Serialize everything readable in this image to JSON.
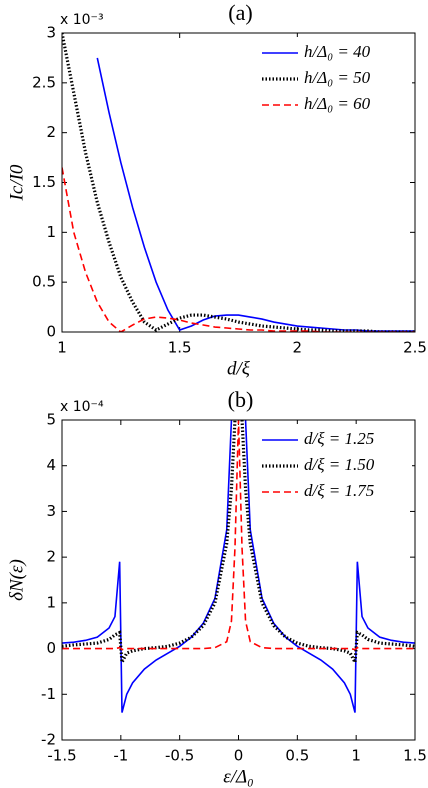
{
  "chart_data": [
    {
      "type": "line",
      "title": "(a)",
      "x_label": "d/ξ",
      "y_label": "Ic/I0",
      "y_multiplier": "x 10⁻³",
      "x": [
        1,
        1.05,
        1.1,
        1.15,
        1.2,
        1.25,
        1.3,
        1.35,
        1.4,
        1.45,
        1.5,
        1.55,
        1.6,
        1.65,
        1.7,
        1.75,
        1.8,
        1.85,
        1.9,
        1.95,
        2,
        2.05,
        2.1,
        2.15,
        2.2,
        2.25,
        2.3,
        2.35,
        2.4,
        2.45,
        2.5
      ],
      "series": [
        {
          "name": "h/Δ₀ = 40",
          "color": "#0000ff",
          "style": "solid",
          "values": [
            null,
            null,
            null,
            2.75,
            2.2,
            1.7,
            1.25,
            0.85,
            0.5,
            0.22,
            0.02,
            0.06,
            0.12,
            0.16,
            0.17,
            0.17,
            0.15,
            0.13,
            0.1,
            0.08,
            0.06,
            0.05,
            0.04,
            0.03,
            0.02,
            0.02,
            0.01,
            0.01,
            0.01,
            0.01,
            0.01
          ]
        },
        {
          "name": "h/Δ₀ = 50",
          "color": "#000000",
          "style": "dotted",
          "values": [
            3,
            2.4,
            1.8,
            1.3,
            0.9,
            0.55,
            0.3,
            0.1,
            0.02,
            0.08,
            0.14,
            0.17,
            0.17,
            0.15,
            0.13,
            0.1,
            0.08,
            0.06,
            0.05,
            0.04,
            0.03,
            0.02,
            0.02,
            0.01,
            0.01,
            0.01,
            0.01,
            0,
            0,
            0,
            0
          ]
        },
        {
          "name": "h/Δ₀ = 60",
          "color": "#ff0000",
          "style": "dashed",
          "values": [
            1.65,
            1.0,
            0.6,
            0.3,
            0.1,
            0,
            0.07,
            0.13,
            0.15,
            0.14,
            0.12,
            0.09,
            0.07,
            0.05,
            0.04,
            0.03,
            0.02,
            0.02,
            0.01,
            0.01,
            0.01,
            0.01,
            0,
            0,
            0,
            0,
            0,
            0,
            0,
            0,
            0
          ]
        }
      ],
      "xlim": [
        1,
        2.5
      ],
      "xticks": [
        1,
        1.5,
        2,
        2.5
      ],
      "ylim": [
        0,
        3
      ],
      "yticks": [
        0,
        0.5,
        1,
        1.5,
        2,
        2.5,
        3
      ],
      "legend": "upper right",
      "grid": false
    },
    {
      "type": "line",
      "title": "(b)",
      "x_label": "ε/Δ₀",
      "y_label": "δN(ε)",
      "y_multiplier": "x 10⁻⁴",
      "x": [
        -1.5,
        -1.4,
        -1.3,
        -1.2,
        -1.1,
        -1.05,
        -1.01,
        -0.99,
        -0.95,
        -0.9,
        -0.8,
        -0.7,
        -0.6,
        -0.5,
        -0.4,
        -0.3,
        -0.2,
        -0.1,
        -0.06,
        -0.03,
        0,
        0.03,
        0.06,
        0.1,
        0.2,
        0.3,
        0.4,
        0.5,
        0.6,
        0.7,
        0.8,
        0.9,
        0.95,
        0.99,
        1.01,
        1.05,
        1.1,
        1.2,
        1.3,
        1.4,
        1.5
      ],
      "series": [
        {
          "name": "d/ξ = 1.25",
          "color": "#0000ff",
          "style": "solid",
          "values": [
            0.12,
            0.14,
            0.18,
            0.25,
            0.45,
            0.7,
            1.9,
            -1.4,
            -1.0,
            -0.75,
            -0.45,
            -0.25,
            -0.1,
            0.05,
            0.25,
            0.55,
            1.1,
            2.6,
            5,
            null,
            null,
            null,
            5,
            2.6,
            1.1,
            0.55,
            0.25,
            0.05,
            -0.1,
            -0.25,
            -0.45,
            -0.75,
            -1.0,
            -1.4,
            1.9,
            0.7,
            0.45,
            0.25,
            0.18,
            0.14,
            0.12
          ]
        },
        {
          "name": "d/ξ = 1.50",
          "color": "#000000",
          "style": "dotted",
          "values": [
            0.05,
            0.08,
            0.1,
            0.12,
            0.2,
            0.3,
            0.35,
            -0.3,
            -0.1,
            -0.05,
            0,
            0.02,
            0.05,
            0.12,
            0.25,
            0.5,
            1.0,
            2.3,
            3.5,
            5,
            null,
            5,
            3.5,
            2.3,
            1.0,
            0.5,
            0.25,
            0.12,
            0.05,
            0.02,
            0,
            -0.05,
            -0.1,
            -0.3,
            0.35,
            0.3,
            0.2,
            0.12,
            0.1,
            0.08,
            0.05
          ]
        },
        {
          "name": "d/ξ = 1.75",
          "color": "#ff0000",
          "style": "dashed",
          "values": [
            0,
            0,
            0,
            0,
            0,
            0,
            0.02,
            -0.02,
            0,
            0,
            0,
            0,
            0,
            0,
            0,
            0,
            0.02,
            0.15,
            0.6,
            2.2,
            5,
            2.2,
            0.6,
            0.15,
            0.02,
            0,
            0,
            0,
            0,
            0,
            0,
            0,
            0,
            -0.02,
            0.02,
            0,
            0,
            0,
            0,
            0,
            0
          ]
        }
      ],
      "xlim": [
        -1.5,
        1.5
      ],
      "xticks": [
        -1.5,
        -1,
        -0.5,
        0,
        0.5,
        1,
        1.5
      ],
      "ylim": [
        -2,
        5
      ],
      "yticks": [
        -2,
        -1,
        0,
        1,
        2,
        3,
        4,
        5
      ],
      "legend": "upper right",
      "grid": false
    }
  ]
}
